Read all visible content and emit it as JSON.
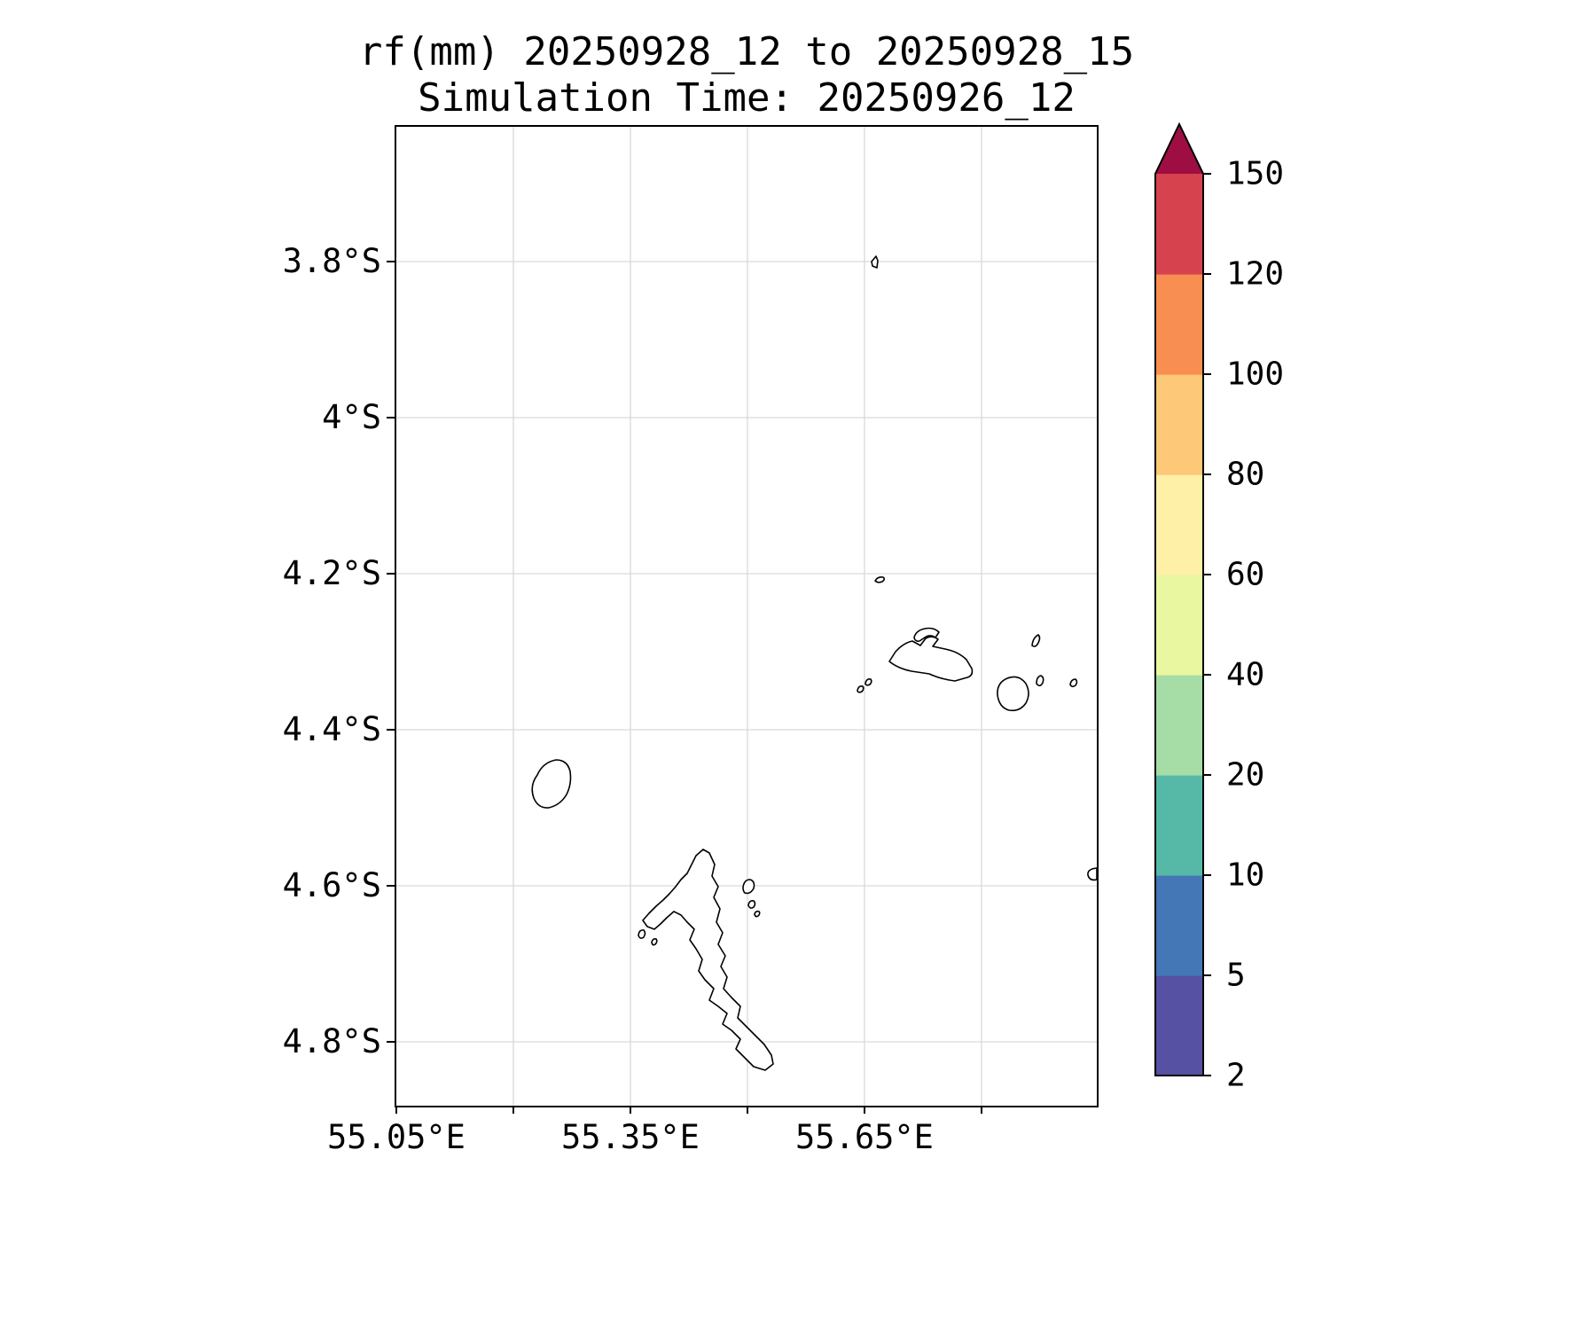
{
  "title": {
    "line1": "rf(mm) 20250928_12 to 20250928_15",
    "line2": "Simulation Time: 20250926_12"
  },
  "map": {
    "y_tick_labels": [
      "3.8°S",
      "4°S",
      "4.2°S",
      "4.4°S",
      "4.6°S",
      "4.8°S"
    ],
    "x_tick_labels": [
      "55.05°E",
      "55.35°E",
      "55.65°E"
    ]
  },
  "colorbar": {
    "tick_labels": [
      "2",
      "5",
      "10",
      "20",
      "40",
      "60",
      "80",
      "100",
      "120",
      "150"
    ],
    "segment_colors": [
      "#5751a3",
      "#4377b6",
      "#56b8a6",
      "#a6dca6",
      "#e9f7a1",
      "#fef0a6",
      "#fdc877",
      "#f88e51",
      "#d6424e"
    ],
    "extend_max_color": "#9e0e43",
    "outline_color": "#000000"
  },
  "chart_data": {
    "type": "map",
    "title": "rf(mm) 20250928_12 to 20250928_15",
    "subtitle": "Simulation Time: 20250926_12",
    "variable": "rf (mm)",
    "x_axis_ticks": [
      "55.05°E",
      "55.35°E",
      "55.65°E"
    ],
    "y_axis_ticks": [
      "3.8°S",
      "4°S",
      "4.2°S",
      "4.4°S",
      "4.6°S",
      "4.8°S"
    ],
    "colorbar_levels": [
      2,
      5,
      10,
      20,
      40,
      60,
      80,
      100,
      120,
      150
    ],
    "colorbar_colors": [
      "#5751a3",
      "#4377b6",
      "#56b8a6",
      "#a6dca6",
      "#e9f7a1",
      "#fef0a6",
      "#fdc877",
      "#f88e51",
      "#d6424e"
    ],
    "colorbar_extend_max_color": "#9e0e43",
    "rainfall_shading_visible": false,
    "grid": true,
    "legend_position": "right-colorbar"
  }
}
